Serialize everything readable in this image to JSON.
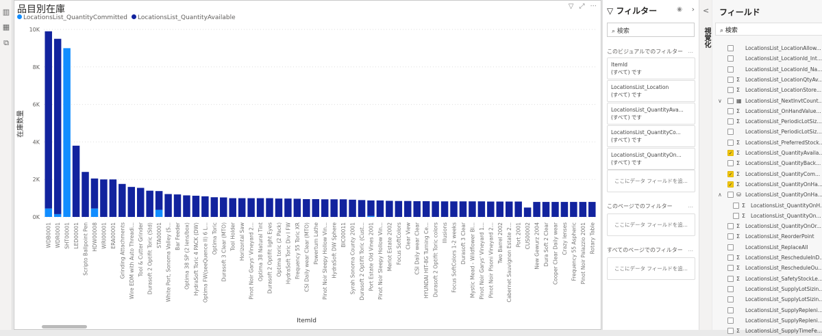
{
  "toolbar": {
    "icons": [
      "report-view-icon",
      "data-view-icon",
      "model-view-icon"
    ]
  },
  "visual": {
    "title": "品目別在庫",
    "icons": [
      "filter-icon",
      "focus-mode-icon",
      "more-options-icon"
    ]
  },
  "chart_data": {
    "type": "bar",
    "stacked": true,
    "title": "品目別在庫",
    "xlabel": "ItemId",
    "ylabel": "在庫数量",
    "ylim": [
      0,
      10000
    ],
    "yticks": [
      "0K",
      "2K",
      "4K",
      "6K",
      "8K",
      "10K"
    ],
    "grid": true,
    "legend": "top-left",
    "series": [
      {
        "name": "LocationsList_QuantityCommitted",
        "color": "#118dff"
      },
      {
        "name": "LocationsList_QuantityAvailable",
        "color": "#12239e"
      }
    ],
    "categories": [
      "WDB0001",
      "WDR0001",
      "SHT00001",
      "LED00001",
      "Scripto Ballpoint Pen",
      "HDW00008",
      "WRI00001",
      "ERA00001",
      "Grinding Attachments",
      "Wire EDM with Auto Threadi...",
      "Tool & Cutter Grinder",
      "Durasoft 2 Optifit Toric (Std)",
      "STA00001",
      "White Port, Sonoma Valley (S...",
      "Bar Feeder",
      "Optima 38 SP (2 lens/box)",
      "HydraSoft Toric 4 PACK (DW)",
      "Optima FW(seeQuence II) 6 L...",
      "Optima Toric",
      "Durasoft 3 Clear (MTO)",
      "Tool Holder",
      "Horizontal Saw",
      "Pinot Noir Garys' Vineyard 2...",
      "Optima 38 Natural Tint",
      "Durasoft 2 Optifit light Eyes",
      "Optima toric (2 Pack)",
      "HydraSoft Toric Div I FW",
      "Frequency 55 Toric XR",
      "CSI Daily wear Clear (MTO)",
      "Powerturn Lathe",
      "Pinot Noir Sleepy Hollow Vin...",
      "HydraSoft DW Sphere",
      "BIC00011",
      "Syrah Sonoma County 2001",
      "Durasoft 2 Optifit Toric (Cust...",
      "Port Estate Old Vines 2001",
      "Pinot Noir Sleepy Hollow Vin...",
      "Merlot Estate 2002",
      "Focus SoftColors",
      "Clear View",
      "CSI Daily wear Clear",
      "HYUNDAI HIT-8G Turning Ce...",
      "Durasoft 2 Optifit Toric colors",
      "Illusions",
      "Focus SoftColors 1-2 weeks",
      "Durasoft 3 Clear",
      "Mystic Mead - Wildflower Bl...",
      "Pinot Noir Garys' Vineyard 1...",
      "Pinot Noir Pisoni Vineyard 2...",
      "Two Barrel 2002",
      "Cabernet Sauvignon Estate 2...",
      "Port 2001",
      "CUS00002",
      "New Gewurz 2004",
      "Dura Soft 2 Clear",
      "Cooper Clear Daily wear",
      "Crazy lenses",
      "Frequency 55 Aspheric",
      "Pinot Noir Palazzio 2001",
      "Rotary Table"
    ],
    "committed": [
      450,
      150,
      9000,
      0,
      0,
      450,
      0,
      0,
      0,
      0,
      0,
      0,
      380,
      0,
      0,
      0,
      0,
      0,
      0,
      0,
      0,
      0,
      0,
      0,
      0,
      0,
      0,
      0,
      0,
      0,
      0,
      0,
      0,
      0,
      0,
      50,
      0,
      0,
      0,
      0,
      0,
      0,
      0,
      0,
      0,
      0,
      0,
      0,
      0,
      0,
      0,
      0,
      0,
      0,
      0,
      0,
      0,
      0,
      0,
      0
    ],
    "available": [
      9450,
      9350,
      0,
      3800,
      2400,
      1600,
      2000,
      2000,
      1760,
      1600,
      1550,
      1400,
      1000,
      1220,
      1200,
      1150,
      1130,
      1100,
      1050,
      1040,
      1000,
      1000,
      1000,
      1000,
      1000,
      980,
      980,
      970,
      950,
      950,
      940,
      940,
      940,
      920,
      900,
      830,
      880,
      860,
      850,
      850,
      840,
      840,
      830,
      830,
      830,
      830,
      830,
      830,
      820,
      820,
      820,
      820,
      500,
      800,
      800,
      800,
      800,
      800,
      800,
      800
    ]
  },
  "filters": {
    "title": "フィルター",
    "search_placeholder": "検索",
    "visual_section": "このビジュアルでのフィルター",
    "page_section": "このページでのフィルター",
    "all_section": "すべてのページでのフィルター",
    "more": "...",
    "cards": [
      {
        "field": "ItemId",
        "value": "(すべて) です"
      },
      {
        "field": "LocationsList_Location",
        "value": "(すべて) です"
      },
      {
        "field": "LocationsList_QuantityAva...",
        "value": "(すべて) です"
      },
      {
        "field": "LocationsList_QuantityCo...",
        "value": "(すべて) です"
      },
      {
        "field": "LocationsList_QuantityOn...",
        "value": "(すべて) です"
      }
    ],
    "drop": "ここにデータ フィールドを追..."
  },
  "viz": {
    "label": "視覚化",
    "collapse": "<"
  },
  "fields": {
    "title": "フィールド",
    "search_placeholder": "検索",
    "items": [
      {
        "label": "LocationsList_LocationAllow...",
        "checked": false,
        "icon": ""
      },
      {
        "label": "LocationsList_LocationId_Int...",
        "checked": false,
        "icon": ""
      },
      {
        "label": "LocationsList_LocationId_Na...",
        "checked": false,
        "icon": ""
      },
      {
        "label": "LocationsList_LocationQtyAv...",
        "checked": false,
        "icon": "Σ"
      },
      {
        "label": "LocationsList_LocationStore...",
        "checked": false,
        "icon": "Σ"
      },
      {
        "label": "LocationsList_NextInvtCount...",
        "checked": false,
        "icon": "▦",
        "exp": "∨"
      },
      {
        "label": "LocationsList_OnHandValue...",
        "checked": false,
        "icon": "Σ"
      },
      {
        "label": "LocationsList_PeriodicLotSiz...",
        "checked": false,
        "icon": "Σ"
      },
      {
        "label": "LocationsList_PeriodicLotSiz...",
        "checked": false,
        "icon": ""
      },
      {
        "label": "LocationsList_PreferredStock...",
        "checked": false,
        "icon": "Σ"
      },
      {
        "label": "LocationsList_QuantityAvaila...",
        "checked": true,
        "icon": "Σ"
      },
      {
        "label": "LocationsList_QuantityBack...",
        "checked": false,
        "icon": "Σ"
      },
      {
        "label": "LocationsList_QuantityCom...",
        "checked": true,
        "icon": "Σ"
      },
      {
        "label": "LocationsList_QuantityOnHa...",
        "checked": true,
        "icon": "Σ"
      },
      {
        "label": "LocationsList_QuantityOnHa...",
        "checked": false,
        "icon": "⛁",
        "exp": "∧"
      },
      {
        "label": "LocationsList_QuantityOnH...",
        "checked": false,
        "icon": "Σ",
        "sub": true
      },
      {
        "label": "LocationsList_QuantityOn...",
        "checked": false,
        "icon": "Σ",
        "sub": true
      },
      {
        "label": "LocationsList_QuantityOnOr...",
        "checked": false,
        "icon": "Σ"
      },
      {
        "label": "LocationsList_ReorderPoint",
        "checked": false,
        "icon": "Σ"
      },
      {
        "label": "LocationsList_ReplaceAll",
        "checked": false,
        "icon": ""
      },
      {
        "label": "LocationsList_RescheduleInD...",
        "checked": false,
        "icon": "Σ"
      },
      {
        "label": "LocationsList_RescheduleOu...",
        "checked": false,
        "icon": "Σ"
      },
      {
        "label": "LocationsList_SafetyStockLe...",
        "checked": false,
        "icon": "Σ"
      },
      {
        "label": "LocationsList_SupplyLotSizin...",
        "checked": false,
        "icon": ""
      },
      {
        "label": "LocationsList_SupplyLotSizin...",
        "checked": false,
        "icon": ""
      },
      {
        "label": "LocationsList_SupplyRepleni...",
        "checked": false,
        "icon": ""
      },
      {
        "label": "LocationsList_SupplyRepleni...",
        "checked": false,
        "icon": ""
      },
      {
        "label": "LocationsList_SupplyTimeFe...",
        "checked": false,
        "icon": "Σ"
      }
    ]
  }
}
